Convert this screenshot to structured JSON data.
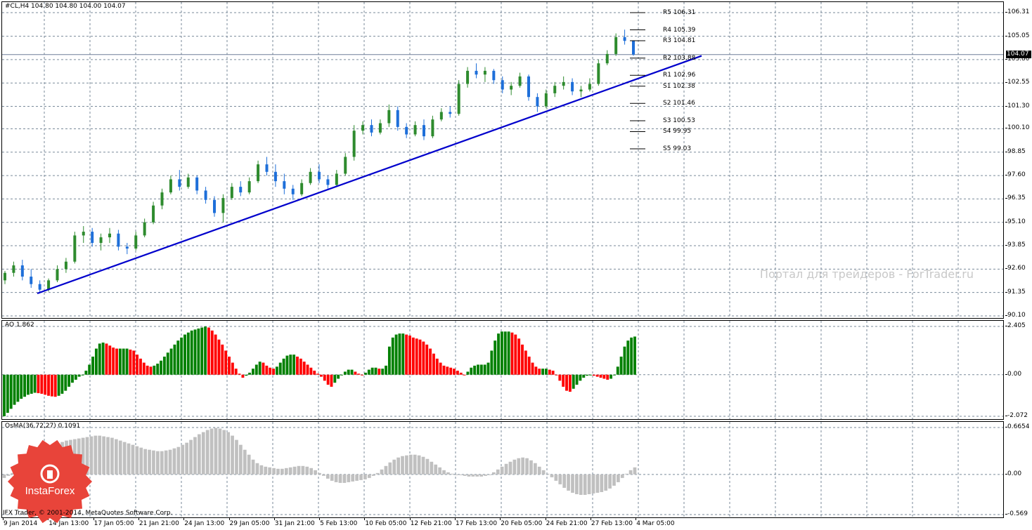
{
  "symbol_header": "#CL,H4  104.80 104.80 104.00 104.07",
  "price_axis": {
    "ticks": [
      "106.31",
      "105.05",
      "103.80",
      "102.55",
      "101.30",
      "100.10",
      "98.85",
      "97.60",
      "96.35",
      "95.10",
      "93.85",
      "92.60",
      "91.35",
      "90.10"
    ],
    "current_price": "104.07"
  },
  "pivots": [
    {
      "name": "R5",
      "value": 106.31,
      "label": "R5 106.31"
    },
    {
      "name": "R4",
      "value": 105.39,
      "label": "R4 105.39"
    },
    {
      "name": "R3",
      "value": 104.81,
      "label": "R3 104.81"
    },
    {
      "name": "R2",
      "value": 103.88,
      "label": "R2 103.88"
    },
    {
      "name": "R1",
      "value": 102.96,
      "label": "R1 102.96"
    },
    {
      "name": "S1",
      "value": 102.38,
      "label": "S1 102.38"
    },
    {
      "name": "S2",
      "value": 101.46,
      "label": "S2 101.46"
    },
    {
      "name": "S3",
      "value": 100.53,
      "label": "S3 100.53"
    },
    {
      "name": "S4",
      "value": 99.95,
      "label": "S4 99.95"
    },
    {
      "name": "S5",
      "value": 99.03,
      "label": "S5 99.03"
    }
  ],
  "watermark": "Портал для трейдеров - ForTrader.ru",
  "ao": {
    "label": "AO 1.862",
    "axis_ticks": [
      "2.405",
      "0.00",
      "-2.072"
    ],
    "max": 2.405,
    "min": -2.072,
    "values": [
      -2.07,
      -1.9,
      -1.7,
      -1.5,
      -1.35,
      -1.2,
      -1.1,
      -1.0,
      -0.95,
      -0.9,
      -0.92,
      -0.95,
      -1.0,
      -1.05,
      -1.08,
      -1.1,
      -1.05,
      -0.95,
      -0.8,
      -0.6,
      -0.4,
      -0.25,
      -0.1,
      0.0,
      0.2,
      0.5,
      0.9,
      1.3,
      1.55,
      1.6,
      1.55,
      1.45,
      1.35,
      1.3,
      1.3,
      1.3,
      1.3,
      1.25,
      1.2,
      1.0,
      0.8,
      0.6,
      0.45,
      0.4,
      0.45,
      0.55,
      0.7,
      0.9,
      1.1,
      1.3,
      1.5,
      1.7,
      1.85,
      2.0,
      2.1,
      2.2,
      2.25,
      2.3,
      2.35,
      2.4,
      2.35,
      2.2,
      2.0,
      1.75,
      1.5,
      1.2,
      0.9,
      0.6,
      0.3,
      0.05,
      -0.15,
      -0.05,
      0.1,
      0.3,
      0.5,
      0.65,
      0.6,
      0.45,
      0.35,
      0.3,
      0.4,
      0.6,
      0.8,
      0.95,
      1.0,
      1.0,
      0.9,
      0.8,
      0.65,
      0.5,
      0.35,
      0.2,
      0.05,
      -0.1,
      -0.3,
      -0.5,
      -0.6,
      -0.4,
      -0.2,
      0.0,
      0.15,
      0.25,
      0.25,
      0.15,
      0.05,
      0.0,
      0.1,
      0.25,
      0.35,
      0.35,
      0.3,
      0.3,
      0.45,
      1.4,
      1.85,
      2.0,
      2.05,
      2.05,
      2.0,
      1.95,
      1.85,
      1.8,
      1.75,
      1.65,
      1.5,
      1.3,
      1.05,
      0.8,
      0.6,
      0.45,
      0.4,
      0.35,
      0.3,
      0.2,
      0.1,
      0.0,
      0.15,
      0.35,
      0.45,
      0.5,
      0.5,
      0.5,
      0.6,
      1.2,
      1.7,
      2.05,
      2.15,
      2.15,
      2.15,
      2.1,
      2.0,
      1.8,
      1.5,
      1.2,
      0.9,
      0.6,
      0.4,
      0.3,
      0.3,
      0.3,
      0.25,
      0.2,
      0.0,
      -0.3,
      -0.6,
      -0.8,
      -0.85,
      -0.7,
      -0.5,
      -0.3,
      -0.15,
      -0.05,
      0.0,
      -0.05,
      -0.1,
      -0.15,
      -0.2,
      -0.25,
      -0.2,
      0.0,
      0.4,
      0.9,
      1.4,
      1.7,
      1.85,
      1.9
    ]
  },
  "osma": {
    "label": "OsMA(36,72,27) 0.1091",
    "axis_ticks": [
      "0.6654",
      "0.00",
      "-0.569"
    ],
    "max": 0.6654,
    "min": -0.569,
    "values": [
      -0.05,
      -0.02,
      0.02,
      0.06,
      0.1,
      0.14,
      0.18,
      0.22,
      0.26,
      0.3,
      0.34,
      0.38,
      0.41,
      0.44,
      0.46,
      0.48,
      0.49,
      0.5,
      0.51,
      0.52,
      0.53,
      0.54,
      0.55,
      0.55,
      0.54,
      0.53,
      0.52,
      0.5,
      0.48,
      0.46,
      0.44,
      0.42,
      0.4,
      0.38,
      0.36,
      0.35,
      0.34,
      0.33,
      0.33,
      0.34,
      0.35,
      0.37,
      0.39,
      0.42,
      0.45,
      0.49,
      0.53,
      0.57,
      0.6,
      0.63,
      0.65,
      0.66,
      0.65,
      0.63,
      0.6,
      0.55,
      0.49,
      0.42,
      0.35,
      0.28,
      0.21,
      0.16,
      0.13,
      0.11,
      0.1,
      0.09,
      0.08,
      0.08,
      0.09,
      0.1,
      0.11,
      0.12,
      0.12,
      0.11,
      0.09,
      0.06,
      0.02,
      -0.02,
      -0.06,
      -0.09,
      -0.11,
      -0.12,
      -0.12,
      -0.11,
      -0.1,
      -0.09,
      -0.08,
      -0.07,
      -0.05,
      -0.02,
      0.02,
      0.07,
      0.12,
      0.17,
      0.21,
      0.24,
      0.26,
      0.27,
      0.28,
      0.28,
      0.27,
      0.25,
      0.22,
      0.18,
      0.14,
      0.1,
      0.06,
      0.03,
      0.01,
      0.0,
      -0.01,
      -0.02,
      -0.03,
      -0.03,
      -0.03,
      -0.03,
      -0.02,
      0.0,
      0.03,
      0.07,
      0.11,
      0.15,
      0.18,
      0.21,
      0.23,
      0.24,
      0.23,
      0.2,
      0.16,
      0.11,
      0.06,
      0.01,
      -0.04,
      -0.09,
      -0.14,
      -0.19,
      -0.23,
      -0.26,
      -0.28,
      -0.29,
      -0.29,
      -0.28,
      -0.27,
      -0.26,
      -0.25,
      -0.23,
      -0.2,
      -0.16,
      -0.11,
      -0.05,
      0.01,
      0.06,
      0.1
    ]
  },
  "time_axis": [
    "9 Jan 2014",
    "14 Jan 13:00",
    "17 Jan 05:00",
    "21 Jan 21:00",
    "24 Jan 13:00",
    "29 Jan 05:00",
    "31 Jan 21:00",
    "5 Feb 13:00",
    "10 Feb 05:00",
    "12 Feb 21:00",
    "17 Feb 13:00",
    "20 Feb 05:00",
    "24 Feb 21:00",
    "27 Feb 13:00",
    "4 Mar 05:00"
  ],
  "logo": "InstaForex",
  "copyright": "IFX Trader, © 2001-2014, MetaQuotes Software Corp.",
  "colors": {
    "bull": "#2e8b2e",
    "bear": "#1e6fd9",
    "ao_up": "#008000",
    "ao_down": "#ff0000",
    "osma": "#c0c0c0",
    "trendline": "#0000cc",
    "grid": "#7a8a9a"
  },
  "chart_data": {
    "type": "candlestick",
    "symbol": "#CL",
    "timeframe": "H4",
    "ylim": [
      90.1,
      106.31
    ],
    "trendline": {
      "from": {
        "x": "9 Jan 2014",
        "y": 91.3
      },
      "to": {
        "x": "4 Mar 05:00",
        "y": 104.0
      }
    },
    "candles": [
      [
        92.0,
        92.5,
        91.8,
        92.4
      ],
      [
        92.4,
        93.0,
        92.2,
        92.8
      ],
      [
        92.8,
        93.1,
        92.0,
        92.2
      ],
      [
        92.2,
        92.6,
        91.6,
        91.8
      ],
      [
        91.8,
        92.0,
        91.3,
        91.5
      ],
      [
        91.5,
        92.1,
        91.4,
        92.0
      ],
      [
        92.0,
        92.8,
        91.9,
        92.6
      ],
      [
        92.6,
        93.2,
        92.4,
        93.0
      ],
      [
        93.0,
        94.6,
        92.9,
        94.4
      ],
      [
        94.4,
        94.9,
        94.0,
        94.6
      ],
      [
        94.6,
        94.8,
        93.8,
        94.0
      ],
      [
        94.0,
        94.5,
        93.6,
        94.3
      ],
      [
        94.3,
        94.8,
        94.0,
        94.5
      ],
      [
        94.5,
        94.7,
        93.6,
        93.8
      ],
      [
        93.8,
        94.0,
        93.4,
        93.7
      ],
      [
        93.7,
        94.6,
        93.6,
        94.4
      ],
      [
        94.4,
        95.3,
        94.3,
        95.1
      ],
      [
        95.1,
        96.2,
        95.0,
        96.0
      ],
      [
        96.0,
        96.9,
        95.8,
        96.7
      ],
      [
        96.7,
        97.6,
        96.6,
        97.4
      ],
      [
        97.4,
        97.9,
        96.8,
        97.0
      ],
      [
        97.0,
        97.7,
        96.9,
        97.5
      ],
      [
        97.5,
        97.6,
        96.6,
        96.8
      ],
      [
        96.8,
        97.0,
        96.1,
        96.3
      ],
      [
        96.3,
        96.5,
        95.4,
        95.6
      ],
      [
        95.6,
        96.6,
        95.1,
        96.4
      ],
      [
        96.4,
        97.2,
        96.3,
        97.0
      ],
      [
        97.0,
        97.3,
        96.5,
        96.7
      ],
      [
        96.7,
        97.5,
        96.6,
        97.3
      ],
      [
        97.3,
        98.4,
        97.2,
        98.2
      ],
      [
        98.2,
        98.6,
        97.6,
        97.8
      ],
      [
        97.8,
        98.2,
        97.0,
        97.3
      ],
      [
        97.3,
        97.7,
        96.6,
        96.9
      ],
      [
        96.9,
        97.1,
        96.3,
        96.6
      ],
      [
        96.6,
        97.4,
        96.5,
        97.2
      ],
      [
        97.2,
        98.0,
        97.1,
        97.8
      ],
      [
        97.8,
        98.2,
        97.2,
        97.4
      ],
      [
        97.4,
        97.6,
        96.9,
        97.1
      ],
      [
        97.1,
        97.9,
        97.0,
        97.7
      ],
      [
        97.7,
        98.8,
        97.6,
        98.6
      ],
      [
        98.6,
        100.3,
        98.4,
        100.0
      ],
      [
        100.0,
        100.5,
        99.8,
        100.3
      ],
      [
        100.3,
        100.6,
        99.7,
        99.9
      ],
      [
        99.9,
        100.6,
        99.8,
        100.4
      ],
      [
        100.4,
        101.4,
        100.2,
        101.1
      ],
      [
        101.1,
        101.3,
        100.0,
        100.2
      ],
      [
        100.2,
        100.4,
        99.6,
        99.8
      ],
      [
        99.8,
        100.5,
        99.7,
        100.3
      ],
      [
        100.3,
        100.6,
        99.5,
        99.7
      ],
      [
        99.7,
        100.8,
        99.6,
        100.6
      ],
      [
        100.6,
        101.2,
        100.5,
        101.0
      ],
      [
        101.0,
        101.3,
        100.7,
        100.9
      ],
      [
        100.9,
        102.7,
        100.8,
        102.5
      ],
      [
        102.5,
        103.4,
        102.3,
        103.2
      ],
      [
        103.2,
        103.6,
        102.8,
        103.0
      ],
      [
        103.0,
        103.4,
        102.6,
        103.2
      ],
      [
        103.2,
        103.3,
        102.5,
        102.7
      ],
      [
        102.7,
        102.9,
        102.0,
        102.2
      ],
      [
        102.2,
        102.6,
        101.9,
        102.4
      ],
      [
        102.4,
        103.1,
        102.3,
        102.9
      ],
      [
        102.9,
        103.0,
        101.6,
        101.8
      ],
      [
        101.8,
        102.0,
        101.0,
        101.3
      ],
      [
        101.3,
        102.2,
        101.2,
        102.0
      ],
      [
        102.0,
        102.6,
        101.8,
        102.4
      ],
      [
        102.4,
        102.9,
        102.2,
        102.6
      ],
      [
        102.6,
        102.8,
        101.9,
        102.1
      ],
      [
        102.1,
        102.4,
        101.8,
        102.2
      ],
      [
        102.2,
        102.8,
        102.1,
        102.5
      ],
      [
        102.5,
        103.8,
        102.4,
        103.6
      ],
      [
        103.6,
        104.3,
        103.5,
        104.1
      ],
      [
        104.1,
        105.2,
        104.0,
        105.0
      ],
      [
        105.0,
        105.4,
        104.6,
        104.8
      ],
      [
        104.8,
        104.8,
        104.0,
        104.07
      ]
    ]
  }
}
